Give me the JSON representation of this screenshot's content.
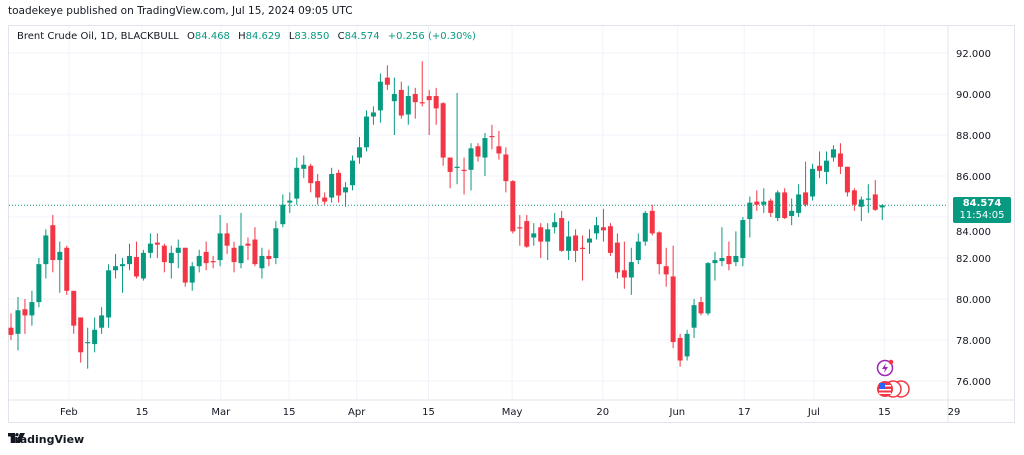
{
  "header": {
    "published": "toadekeye published on TradingView.com, Jul 15, 2024 09:05 UTC"
  },
  "legend": {
    "symbol": "Brent Crude Oil, 1D, BLACKBULL",
    "o_label": "O",
    "o": "84.468",
    "h_label": "H",
    "h": "84.629",
    "l_label": "L",
    "l": "83.850",
    "c_label": "C",
    "c": "84.574",
    "change": "+0.256 (+0.30%)"
  },
  "price_tag": {
    "price": "84.574",
    "countdown": "11:54:05"
  },
  "footer": {
    "brand": "TradingView"
  },
  "colors": {
    "up": "#089981",
    "down": "#f23645",
    "grid": "#f0f3fa",
    "event_purple": "#9c27b0",
    "flag_red": "#f23645"
  },
  "icons": {
    "event": "lightning-event-icon",
    "flags": "us-flag-event-icon"
  },
  "chart_data": {
    "type": "candlestick",
    "title": "Brent Crude Oil, 1D, BLACKBULL",
    "ylim": [
      75,
      93
    ],
    "y_ticks": [
      "76.000",
      "78.000",
      "80.000",
      "82.000",
      "84.000",
      "86.000",
      "88.000",
      "90.000",
      "92.000"
    ],
    "x_ticks": [
      {
        "label": "Feb",
        "index": 8.3
      },
      {
        "label": "15",
        "index": 18.8
      },
      {
        "label": "Mar",
        "index": 30.1
      },
      {
        "label": "15",
        "index": 39.9
      },
      {
        "label": "Apr",
        "index": 49.6
      },
      {
        "label": "15",
        "index": 59.9
      },
      {
        "label": "May",
        "index": 71.9
      },
      {
        "label": "20",
        "index": 84.9
      },
      {
        "label": "Jun",
        "index": 95.6
      },
      {
        "label": "17",
        "index": 105.2
      },
      {
        "label": "Jul",
        "index": 115.2
      },
      {
        "label": "15",
        "index": 125.3
      },
      {
        "label": "29",
        "index": 135.3
      }
    ],
    "last_price": 84.574,
    "ohlc": [
      [
        78.6,
        79.3,
        78.0,
        78.25
      ],
      [
        78.3,
        80.1,
        77.5,
        79.45
      ],
      [
        79.5,
        80.0,
        78.3,
        79.2
      ],
      [
        79.2,
        80.4,
        78.7,
        79.85
      ],
      [
        79.85,
        82.0,
        79.6,
        81.7
      ],
      [
        81.7,
        83.4,
        81.0,
        83.1
      ],
      [
        83.6,
        84.1,
        81.3,
        81.9
      ],
      [
        81.9,
        82.8,
        80.3,
        82.3
      ],
      [
        82.5,
        82.6,
        80.2,
        80.4
      ],
      [
        80.4,
        80.4,
        78.3,
        78.7
      ],
      [
        79.1,
        79.1,
        76.9,
        77.4
      ],
      [
        77.85,
        78.6,
        76.6,
        77.9
      ],
      [
        77.8,
        79.1,
        77.4,
        78.5
      ],
      [
        78.6,
        79.6,
        78.3,
        79.2
      ],
      [
        79.1,
        81.7,
        78.6,
        81.4
      ],
      [
        81.4,
        82.2,
        81.0,
        81.6
      ],
      [
        81.6,
        82.0,
        80.3,
        81.7
      ],
      [
        81.7,
        82.7,
        81.4,
        82.1
      ],
      [
        82.05,
        82.8,
        81.0,
        81.1
      ],
      [
        81.0,
        82.4,
        80.9,
        82.25
      ],
      [
        82.25,
        83.2,
        82.0,
        82.7
      ],
      [
        82.75,
        83.2,
        82.0,
        82.65
      ],
      [
        82.6,
        82.7,
        81.3,
        81.8
      ],
      [
        81.75,
        82.6,
        81.0,
        82.25
      ],
      [
        82.25,
        82.9,
        81.5,
        82.5
      ],
      [
        82.5,
        82.5,
        80.6,
        80.8
      ],
      [
        80.8,
        81.8,
        80.4,
        81.6
      ],
      [
        81.6,
        82.4,
        81.3,
        82.1
      ],
      [
        82.3,
        82.8,
        81.4,
        81.75
      ],
      [
        81.85,
        82.1,
        81.5,
        81.8
      ],
      [
        81.9,
        84.1,
        81.6,
        83.2
      ],
      [
        83.2,
        83.7,
        82.2,
        82.6
      ],
      [
        82.5,
        82.8,
        81.3,
        81.8
      ],
      [
        81.75,
        84.2,
        81.5,
        82.6
      ],
      [
        82.7,
        83.0,
        81.9,
        82.6
      ],
      [
        82.9,
        83.5,
        81.6,
        81.7
      ],
      [
        81.5,
        82.5,
        81.0,
        82.1
      ],
      [
        82.1,
        82.4,
        81.6,
        81.95
      ],
      [
        82.0,
        83.8,
        81.7,
        83.45
      ],
      [
        83.65,
        85.1,
        83.5,
        84.6
      ],
      [
        84.7,
        85.2,
        84.2,
        84.8
      ],
      [
        84.9,
        86.9,
        84.6,
        86.4
      ],
      [
        86.35,
        87.0,
        85.9,
        86.55
      ],
      [
        86.5,
        86.6,
        85.2,
        85.65
      ],
      [
        85.75,
        86.1,
        84.6,
        84.95
      ],
      [
        84.95,
        85.2,
        84.6,
        84.75
      ],
      [
        84.95,
        86.4,
        84.7,
        86.1
      ],
      [
        86.15,
        86.3,
        84.7,
        85.05
      ],
      [
        85.2,
        85.7,
        84.5,
        85.45
      ],
      [
        85.55,
        87.0,
        85.3,
        86.75
      ],
      [
        86.9,
        87.9,
        86.6,
        87.4
      ],
      [
        87.4,
        89.2,
        87.2,
        88.9
      ],
      [
        88.9,
        89.4,
        88.5,
        89.1
      ],
      [
        89.2,
        91.0,
        88.6,
        90.6
      ],
      [
        90.8,
        91.4,
        90.2,
        90.45
      ],
      [
        89.65,
        90.8,
        88.0,
        90.0
      ],
      [
        90.2,
        90.6,
        88.8,
        88.95
      ],
      [
        89.0,
        90.4,
        88.5,
        89.9
      ],
      [
        90.0,
        90.3,
        88.8,
        89.6
      ],
      [
        89.6,
        91.6,
        89.4,
        89.55
      ],
      [
        89.9,
        90.2,
        88.0,
        89.7
      ],
      [
        89.9,
        90.3,
        88.5,
        89.3
      ],
      [
        89.55,
        89.6,
        86.5,
        86.9
      ],
      [
        86.9,
        86.9,
        85.4,
        86.2
      ],
      [
        86.4,
        90.05,
        85.6,
        86.45
      ],
      [
        86.3,
        86.9,
        85.1,
        86.25
      ],
      [
        86.3,
        87.6,
        85.3,
        87.35
      ],
      [
        87.45,
        87.6,
        86.7,
        86.95
      ],
      [
        86.9,
        88.1,
        86.0,
        87.85
      ],
      [
        87.95,
        88.5,
        87.3,
        87.9
      ],
      [
        87.45,
        88.2,
        86.8,
        87.1
      ],
      [
        87.05,
        87.4,
        85.2,
        85.75
      ],
      [
        85.75,
        85.8,
        83.2,
        83.3
      ],
      [
        83.5,
        84.1,
        82.6,
        83.45
      ],
      [
        83.8,
        84.1,
        82.5,
        82.55
      ],
      [
        83.0,
        83.7,
        82.6,
        83.2
      ],
      [
        83.5,
        83.7,
        82.0,
        82.8
      ],
      [
        82.8,
        83.7,
        81.9,
        83.4
      ],
      [
        83.5,
        84.2,
        83.2,
        83.75
      ],
      [
        83.95,
        84.3,
        82.3,
        82.35
      ],
      [
        82.35,
        83.8,
        81.9,
        83.05
      ],
      [
        83.1,
        83.4,
        81.8,
        82.35
      ],
      [
        82.5,
        83.1,
        80.9,
        82.45
      ],
      [
        82.75,
        83.4,
        82.2,
        82.95
      ],
      [
        83.2,
        84.0,
        82.9,
        83.6
      ],
      [
        83.5,
        84.4,
        82.8,
        83.35
      ],
      [
        83.55,
        83.7,
        82.1,
        82.25
      ],
      [
        82.75,
        83.2,
        81.0,
        81.3
      ],
      [
        81.4,
        82.8,
        80.5,
        81.05
      ],
      [
        81.05,
        82.5,
        80.2,
        81.8
      ],
      [
        81.9,
        83.2,
        81.7,
        82.8
      ],
      [
        82.8,
        84.3,
        82.6,
        84.2
      ],
      [
        84.3,
        84.6,
        83.1,
        83.2
      ],
      [
        83.25,
        83.3,
        81.2,
        81.7
      ],
      [
        81.6,
        82.5,
        80.6,
        81.2
      ],
      [
        81.1,
        82.6,
        77.6,
        77.9
      ],
      [
        78.1,
        78.3,
        76.7,
        77.0
      ],
      [
        77.2,
        78.5,
        77.0,
        78.3
      ],
      [
        78.6,
        80.0,
        78.1,
        79.7
      ],
      [
        79.85,
        80.1,
        79.2,
        79.3
      ],
      [
        79.3,
        81.8,
        79.2,
        81.75
      ],
      [
        81.75,
        82.3,
        80.9,
        81.9
      ],
      [
        81.85,
        83.5,
        81.6,
        82.0
      ],
      [
        82.1,
        82.8,
        81.4,
        81.7
      ],
      [
        81.8,
        83.3,
        81.6,
        82.1
      ],
      [
        82.0,
        84.0,
        81.6,
        83.85
      ],
      [
        83.9,
        85.0,
        83.0,
        84.7
      ],
      [
        84.75,
        85.3,
        84.3,
        84.6
      ],
      [
        84.6,
        85.4,
        84.2,
        84.75
      ],
      [
        84.8,
        84.9,
        84.0,
        84.2
      ],
      [
        83.95,
        85.3,
        83.8,
        85.2
      ],
      [
        85.2,
        85.4,
        83.9,
        83.95
      ],
      [
        84.05,
        84.9,
        83.6,
        84.3
      ],
      [
        84.2,
        85.6,
        84.0,
        85.1
      ],
      [
        85.2,
        86.7,
        84.5,
        84.6
      ],
      [
        85.0,
        86.6,
        84.8,
        86.35
      ],
      [
        86.5,
        87.2,
        85.9,
        86.25
      ],
      [
        86.2,
        87.2,
        85.6,
        86.75
      ],
      [
        86.9,
        87.5,
        86.7,
        87.3
      ],
      [
        87.1,
        87.6,
        86.1,
        86.45
      ],
      [
        86.45,
        86.45,
        85.0,
        85.2
      ],
      [
        85.3,
        85.4,
        84.3,
        84.6
      ],
      [
        84.5,
        85.0,
        83.8,
        84.85
      ],
      [
        84.85,
        85.6,
        84.2,
        84.9
      ],
      [
        85.1,
        85.8,
        84.3,
        84.35
      ],
      [
        84.468,
        84.629,
        83.85,
        84.574
      ]
    ]
  }
}
